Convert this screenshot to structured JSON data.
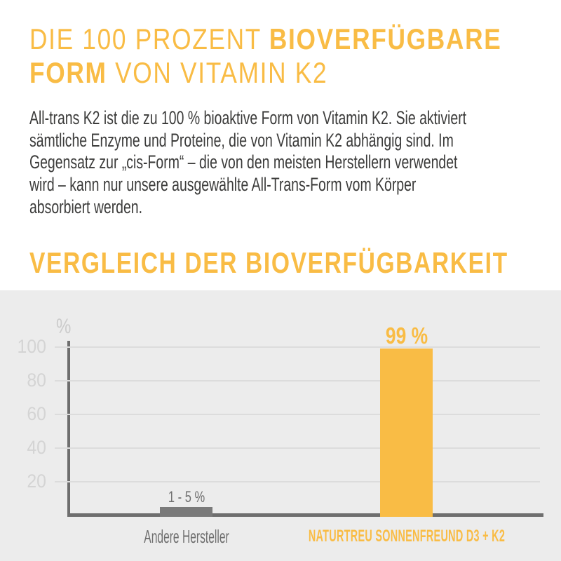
{
  "colors": {
    "accent": "#F9BC45",
    "body_text": "#3C3C3B",
    "chart_background": "#ECECEC",
    "axis": "#6E6E6E",
    "gridline": "#DCDCDC",
    "tick_label": "#D4D4D4",
    "muted_label": "#6F6F6F"
  },
  "heading": {
    "line1_regular": "DIE 100 PROZENT ",
    "line1_bold": "BIOVERFÜGBARE",
    "line2_bold": "FORM",
    "line2_regular": " VON VITAMIN K2"
  },
  "intro": {
    "lines": [
      "All-trans K2 ist die zu 100 % bioaktive Form von Vitamin K2. Sie aktiviert",
      "sämtliche Enzyme und Proteine, die von Vitamin K2 abhängig sind. Im",
      "Gegensatz zur „cis-Form“ – die von den meisten Herstellern verwendet",
      "wird – kann nur unsere ausgewählte All-Trans-Form vom Körper",
      "absorbiert werden."
    ]
  },
  "section_heading": "VERGLEICH DER BIOVERFÜGBARKEIT",
  "chart_data": {
    "type": "bar",
    "title": "VERGLEICH DER BIOVERFÜGBARKEIT",
    "ylabel": "%",
    "xlabel": "",
    "categories": [
      "Andere Hersteller",
      "NATURTREU SONNENFREUND D3 + K2"
    ],
    "values": [
      5,
      99
    ],
    "value_labels": [
      "1 - 5 %",
      "99 %"
    ],
    "yticks": [
      20,
      40,
      60,
      80,
      100
    ],
    "ylim": [
      0,
      104
    ],
    "grid": true,
    "legend": "none",
    "bar_colors": [
      "#7A7A7A",
      "#F9BC45"
    ]
  }
}
